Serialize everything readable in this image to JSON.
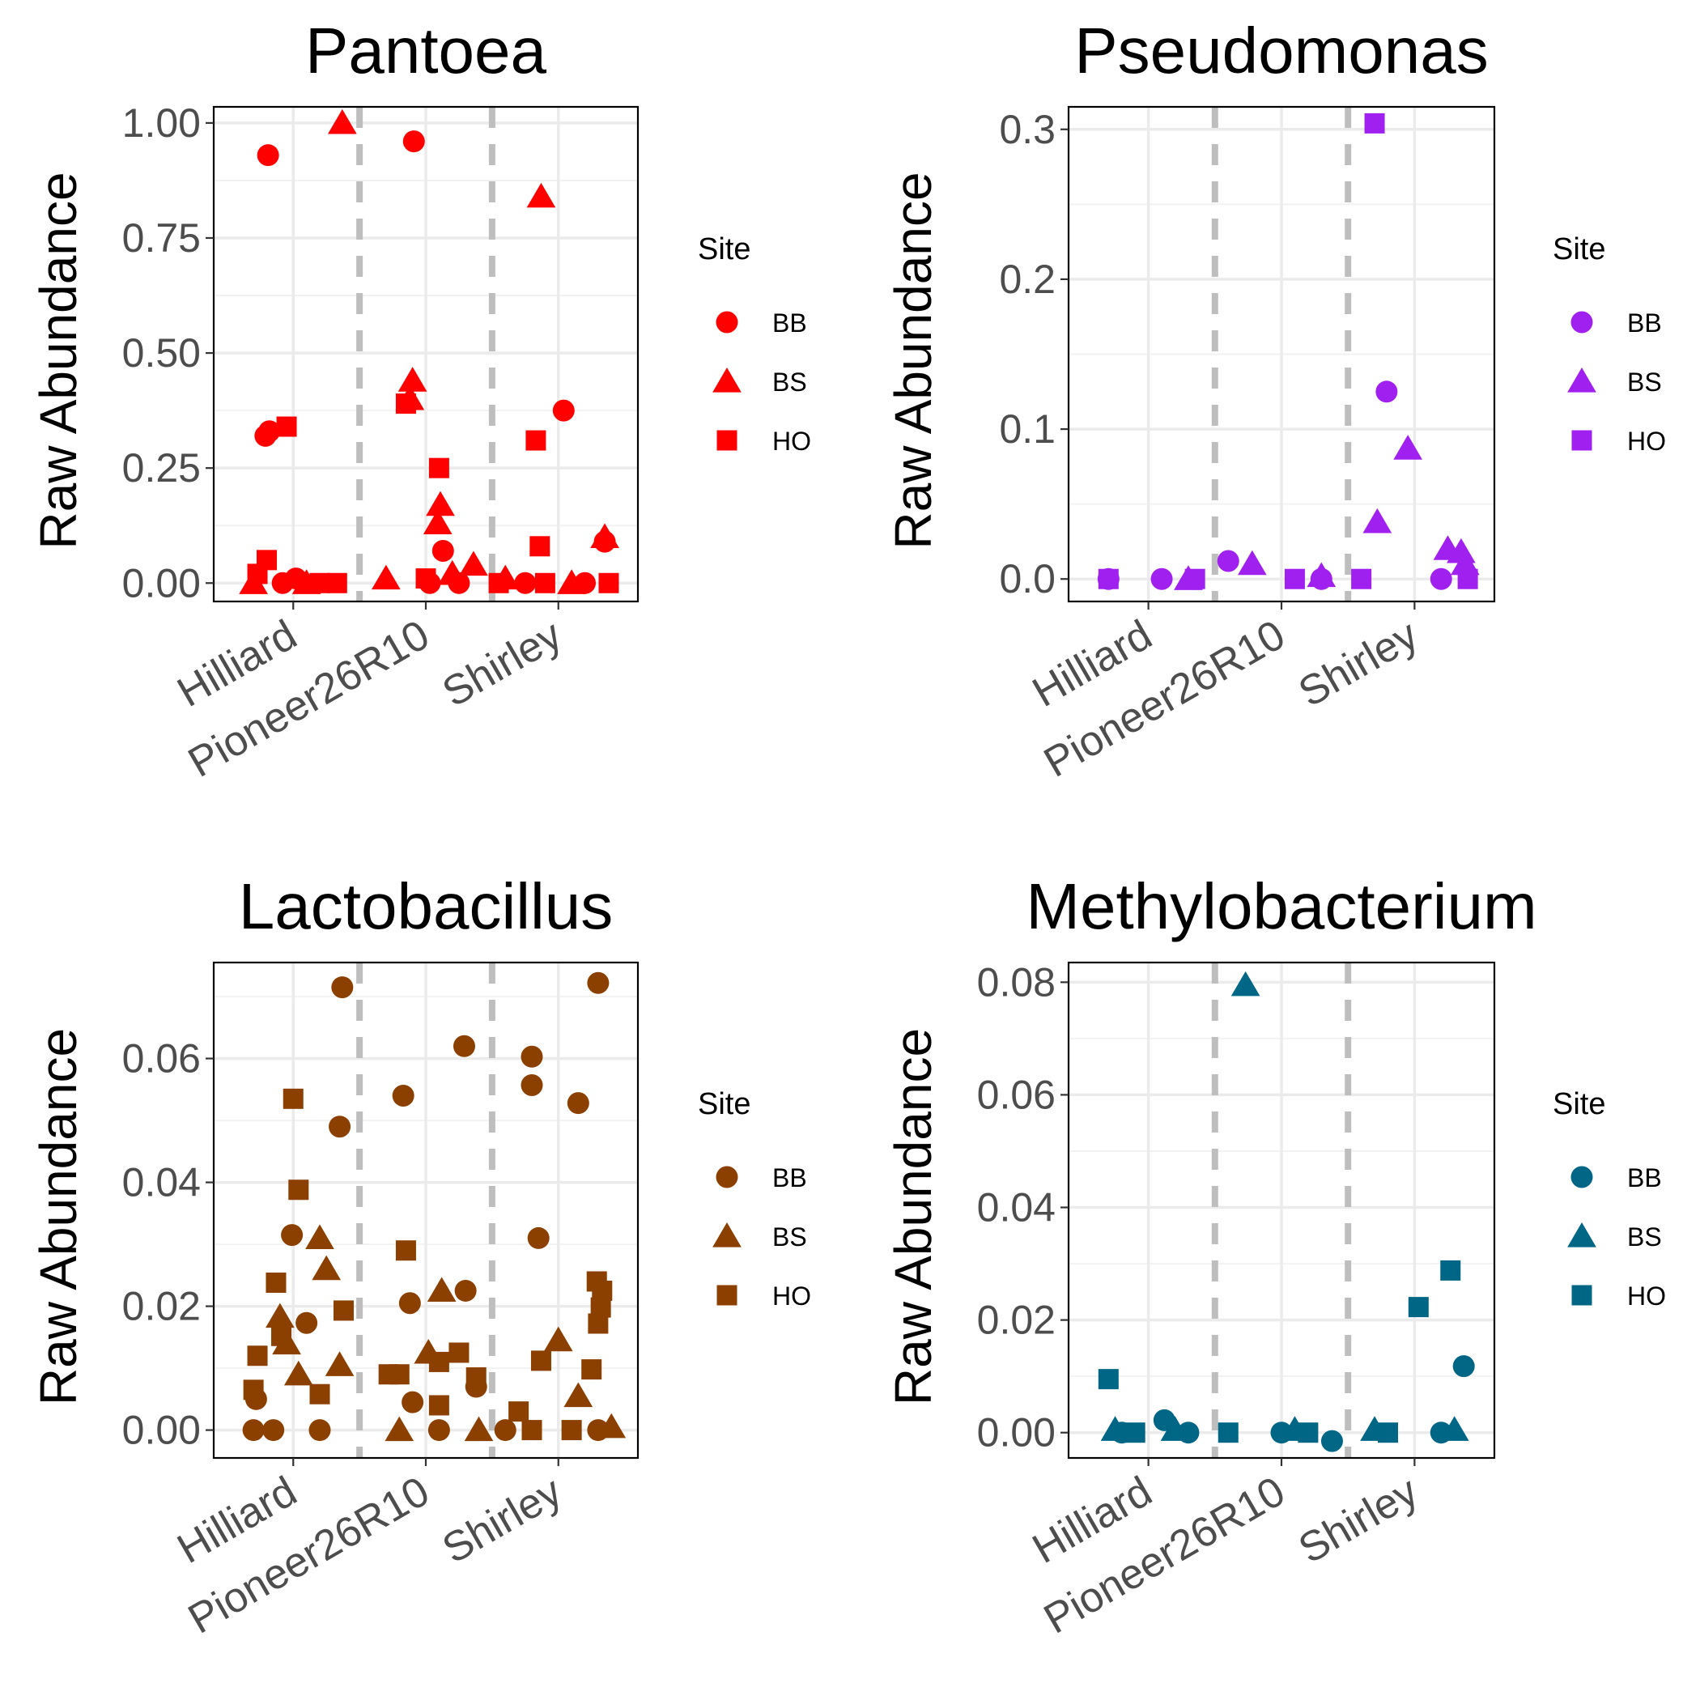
{
  "legend_title": "Site",
  "y_axis_label": "Raw Abundance",
  "legend_items": [
    {
      "label": "BB",
      "shape": "circle"
    },
    {
      "label": "BS",
      "shape": "triangle"
    },
    {
      "label": "HO",
      "shape": "square"
    }
  ],
  "chart_data": [
    {
      "type": "scatter",
      "title": "Pantoea",
      "ylabel": "Raw Abundance",
      "categories": [
        "Hilliard",
        "Pioneer26R10",
        "Shirley"
      ],
      "ylim": [
        -0.04,
        1.035
      ],
      "yticks": [
        "0.00",
        "0.25",
        "0.50",
        "0.75",
        "1.00"
      ],
      "color": "#FF0000",
      "legend_title": "Site",
      "series": [
        {
          "name": "BB",
          "shape": "circle",
          "points": [
            [
              0.81,
              0.93
            ],
            [
              0.79,
              0.32
            ],
            [
              0.82,
              0.33
            ],
            [
              1.02,
              0.01
            ],
            [
              0.92,
              0.0
            ],
            [
              1.91,
              0.96
            ],
            [
              2.13,
              0.07
            ],
            [
              2.03,
              0.0
            ],
            [
              2.25,
              0.0
            ],
            [
              3.04,
              0.375
            ],
            [
              3.35,
              0.09
            ],
            [
              2.75,
              0.0
            ],
            [
              3.2,
              0.0
            ]
          ]
        },
        {
          "name": "BS",
          "shape": "triangle",
          "points": [
            [
              1.37,
              1.0
            ],
            [
              0.7,
              0.0
            ],
            [
              1.1,
              0.0
            ],
            [
              1.9,
              0.44
            ],
            [
              1.88,
              0.4
            ],
            [
              2.11,
              0.17
            ],
            [
              2.09,
              0.13
            ],
            [
              2.36,
              0.04
            ],
            [
              2.2,
              0.02
            ],
            [
              1.7,
              0.01
            ],
            [
              2.87,
              0.84
            ],
            [
              3.35,
              0.1
            ],
            [
              3.1,
              0.0
            ],
            [
              2.6,
              0.01
            ]
          ]
        },
        {
          "name": "HO",
          "shape": "square",
          "points": [
            [
              0.95,
              0.34
            ],
            [
              0.8,
              0.05
            ],
            [
              0.73,
              0.02
            ],
            [
              1.2,
              0.0
            ],
            [
              1.33,
              0.0
            ],
            [
              1.85,
              0.39
            ],
            [
              2.1,
              0.25
            ],
            [
              2.0,
              0.01
            ],
            [
              2.83,
              0.31
            ],
            [
              2.86,
              0.08
            ],
            [
              2.9,
              0.0
            ],
            [
              3.38,
              0.0
            ],
            [
              2.55,
              0.0
            ]
          ]
        }
      ]
    },
    {
      "type": "scatter",
      "title": "Pseudomonas",
      "ylabel": "Raw Abundance",
      "categories": [
        "Hilliard",
        "Pioneer26R10",
        "Shirley"
      ],
      "ylim": [
        -0.015,
        0.315
      ],
      "yticks": [
        "0.0",
        "0.1",
        "0.2",
        "0.3"
      ],
      "color": "#A020F0",
      "legend_title": "Site",
      "series": [
        {
          "name": "BB",
          "shape": "circle",
          "points": [
            [
              2.79,
              0.125
            ],
            [
              1.6,
              0.012
            ],
            [
              0.7,
              0.0
            ],
            [
              1.1,
              0.0
            ],
            [
              2.3,
              0.0
            ],
            [
              3.2,
              0.0
            ]
          ]
        },
        {
          "name": "BS",
          "shape": "triangle",
          "points": [
            [
              2.95,
              0.087
            ],
            [
              2.72,
              0.038
            ],
            [
              3.25,
              0.02
            ],
            [
              3.35,
              0.018
            ],
            [
              1.78,
              0.01
            ],
            [
              3.38,
              0.01
            ],
            [
              1.3,
              0.0
            ],
            [
              2.3,
              0.002
            ]
          ]
        },
        {
          "name": "HO",
          "shape": "square",
          "points": [
            [
              2.7,
              0.304
            ],
            [
              0.7,
              0.0
            ],
            [
              1.35,
              0.0
            ],
            [
              2.1,
              0.0
            ],
            [
              2.6,
              0.0
            ],
            [
              3.4,
              0.0
            ]
          ]
        }
      ]
    },
    {
      "type": "scatter",
      "title": "Lactobacillus",
      "ylabel": "Raw Abundance",
      "categories": [
        "Hilliard",
        "Pioneer26R10",
        "Shirley"
      ],
      "ylim": [
        -0.0045,
        0.0755
      ],
      "yticks": [
        "0.00",
        "0.02",
        "0.04",
        "0.06"
      ],
      "color": "#8B4000",
      "legend_title": "Site",
      "series": [
        {
          "name": "BB",
          "shape": "circle",
          "points": [
            [
              1.37,
              0.0715
            ],
            [
              1.35,
              0.049
            ],
            [
              0.99,
              0.0315
            ],
            [
              1.1,
              0.0173
            ],
            [
              0.72,
              0.005
            ],
            [
              0.7,
              0.0
            ],
            [
              0.85,
              0.0
            ],
            [
              1.2,
              0.0
            ],
            [
              1.83,
              0.054
            ],
            [
              2.29,
              0.062
            ],
            [
              2.8,
              0.0603
            ],
            [
              2.8,
              0.0557
            ],
            [
              2.85,
              0.031
            ],
            [
              3.15,
              0.0528
            ],
            [
              3.3,
              0.0722
            ],
            [
              2.3,
              0.0225
            ],
            [
              1.88,
              0.0205
            ],
            [
              2.38,
              0.007
            ],
            [
              1.9,
              0.0045
            ],
            [
              2.1,
              0.0
            ],
            [
              2.6,
              0.0
            ],
            [
              3.3,
              0.0
            ]
          ]
        },
        {
          "name": "BS",
          "shape": "triangle",
          "points": [
            [
              1.2,
              0.031
            ],
            [
              1.25,
              0.026
            ],
            [
              0.9,
              0.0183
            ],
            [
              0.95,
              0.014
            ],
            [
              1.35,
              0.0105
            ],
            [
              1.04,
              0.009
            ],
            [
              2.12,
              0.0225
            ],
            [
              2.02,
              0.0125
            ],
            [
              3.0,
              0.0145
            ],
            [
              3.15,
              0.0055
            ],
            [
              3.4,
              0.0005
            ],
            [
              2.4,
              0.0
            ],
            [
              1.8,
              0.0
            ]
          ]
        },
        {
          "name": "HO",
          "shape": "square",
          "points": [
            [
              1.0,
              0.0535
            ],
            [
              1.04,
              0.0388
            ],
            [
              0.87,
              0.0238
            ],
            [
              0.91,
              0.0152
            ],
            [
              0.73,
              0.012
            ],
            [
              0.7,
              0.0065
            ],
            [
              1.38,
              0.0193
            ],
            [
              1.2,
              0.0058
            ],
            [
              1.85,
              0.029
            ],
            [
              1.8,
              0.009
            ],
            [
              1.72,
              0.009
            ],
            [
              2.25,
              0.0125
            ],
            [
              2.1,
              0.011
            ],
            [
              2.38,
              0.0085
            ],
            [
              2.1,
              0.004
            ],
            [
              3.29,
              0.024
            ],
            [
              3.33,
              0.0225
            ],
            [
              3.32,
              0.0198
            ],
            [
              3.3,
              0.0172
            ],
            [
              3.25,
              0.0098
            ],
            [
              2.87,
              0.0112
            ],
            [
              2.7,
              0.003
            ],
            [
              3.1,
              0.0
            ],
            [
              2.8,
              0.0
            ]
          ]
        }
      ]
    },
    {
      "type": "scatter",
      "title": "Methylobacterium",
      "ylabel": "Raw Abundance",
      "categories": [
        "Hilliard",
        "Pioneer26R10",
        "Shirley"
      ],
      "ylim": [
        -0.0045,
        0.0835
      ],
      "yticks": [
        "0.00",
        "0.02",
        "0.04",
        "0.06",
        "0.08"
      ],
      "color": "#006685",
      "legend_title": "Site",
      "series": [
        {
          "name": "BB",
          "shape": "circle",
          "points": [
            [
              3.37,
              0.0118
            ],
            [
              1.12,
              0.0022
            ],
            [
              0.8,
              0.0
            ],
            [
              1.3,
              0.0
            ],
            [
              2.0,
              0.0
            ],
            [
              2.38,
              -0.0015
            ],
            [
              3.2,
              0.0
            ]
          ]
        },
        {
          "name": "BS",
          "shape": "triangle",
          "points": [
            [
              1.73,
              0.0795
            ],
            [
              0.75,
              0.0005
            ],
            [
              1.2,
              0.0005
            ],
            [
              2.1,
              0.0005
            ],
            [
              2.7,
              0.0005
            ],
            [
              3.3,
              0.0005
            ]
          ]
        },
        {
          "name": "HO",
          "shape": "square",
          "points": [
            [
              0.7,
              0.0095
            ],
            [
              3.27,
              0.0288
            ],
            [
              3.03,
              0.0223
            ],
            [
              0.9,
              0.0
            ],
            [
              1.6,
              0.0
            ],
            [
              2.2,
              0.0
            ],
            [
              2.8,
              0.0
            ]
          ]
        }
      ]
    }
  ]
}
